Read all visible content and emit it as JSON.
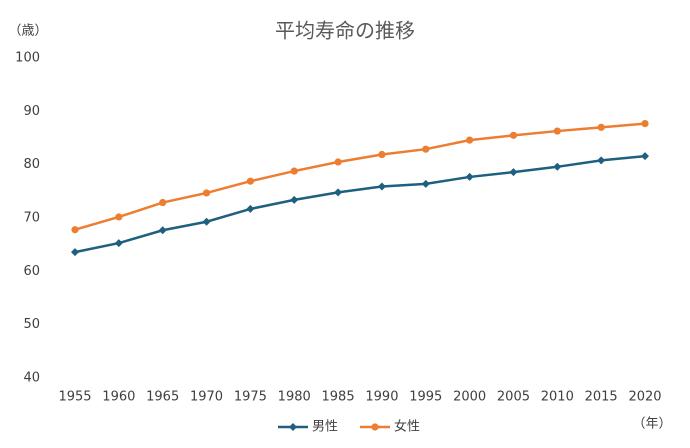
{
  "chart_data": {
    "type": "line",
    "title": "平均寿命の推移",
    "y_label": "（歳）",
    "x_label": "（年）",
    "categories": [
      "1955",
      "1960",
      "1965",
      "1970",
      "1975",
      "1980",
      "1985",
      "1990",
      "1995",
      "2000",
      "2005",
      "2010",
      "2015",
      "2020"
    ],
    "series": [
      {
        "name": "男性",
        "color": "#1f5f7f",
        "marker": "diamond",
        "values": [
          63.6,
          65.3,
          67.7,
          69.3,
          71.7,
          73.4,
          74.8,
          75.9,
          76.4,
          77.7,
          78.6,
          79.6,
          80.8,
          81.6
        ]
      },
      {
        "name": "女性",
        "color": "#ed7d31",
        "marker": "circle",
        "values": [
          67.8,
          70.2,
          72.9,
          74.7,
          76.9,
          78.8,
          80.5,
          81.9,
          82.9,
          84.6,
          85.5,
          86.3,
          87.0,
          87.7
        ]
      }
    ],
    "ylim": [
      40,
      100
    ],
    "yticks": [
      40,
      50,
      60,
      70,
      80,
      90,
      100
    ],
    "legend": "bottom"
  }
}
